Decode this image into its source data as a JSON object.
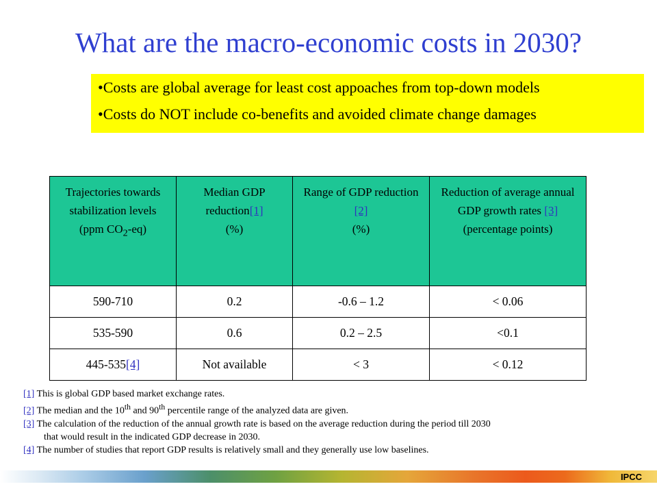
{
  "title": "What are the macro-economic costs in 2030?",
  "bullets": [
    "•Costs are global average for least cost appoaches from top-down models",
    "•Costs do NOT include co-benefits and avoided climate change damages"
  ],
  "table": {
    "headers": {
      "col1": {
        "line1": "Trajectories towards stabilization levels",
        "line2": "(ppm CO",
        "sub": "2",
        "line3": "-eq)"
      },
      "col2": {
        "text": "Median GDP reduction",
        "ref": "[1]",
        "unit": "(%)"
      },
      "col3": {
        "text": "Range of GDP reduction ",
        "ref": "[2]",
        "unit": "(%)"
      },
      "col4": {
        "text": "Reduction of average annual GDP growth rates ",
        "ref": "[3]",
        "unit": "(percentage points)"
      }
    },
    "rows": [
      {
        "level": "590-710",
        "level_ref": "",
        "median": "0.2",
        "range": "-0.6 – 1.2",
        "growth": "< 0.06"
      },
      {
        "level": "535-590",
        "level_ref": "",
        "median": "0.6",
        "range": "0.2 – 2.5",
        "growth": "<0.1"
      },
      {
        "level": "445-535",
        "level_ref": "[4]",
        "median": "Not available",
        "range": "< 3",
        "growth": "< 0.12"
      }
    ]
  },
  "footnotes": [
    {
      "ref": "[1]",
      "text": " This is global GDP based market exchange rates."
    },
    {
      "ref": "[2]",
      "text_a": " The median and the 10",
      "sup_a": "th",
      "text_b": " and 90",
      "sup_b": "th",
      "text_c": " percentile range of the analyzed data are given."
    },
    {
      "ref": "[3]",
      "text": " The calculation of the reduction of the annual growth rate is based on the average reduction during the period till 2030",
      "continuation": "that would result in the indicated GDP decrease in 2030."
    },
    {
      "ref": "[4]",
      "text": " The number of studies that report GDP results is relatively small and they generally use low baselines."
    }
  ],
  "footer": {
    "label": "IPCC"
  }
}
